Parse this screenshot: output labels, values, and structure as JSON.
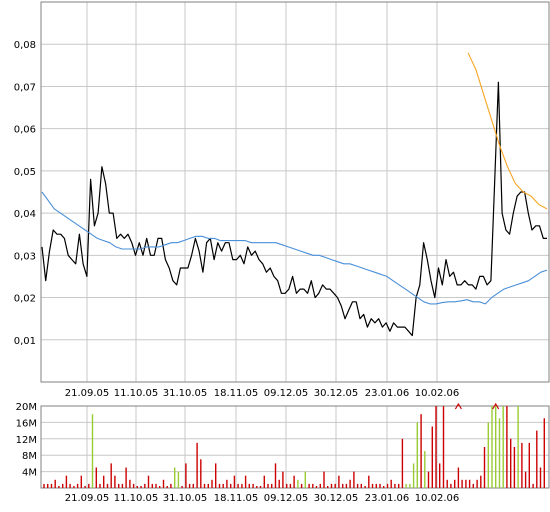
{
  "chart_data": [
    {
      "type": "line",
      "title": "",
      "xlabel": "",
      "ylabel": "",
      "grid": true,
      "ylim": [
        0.0,
        0.09
      ],
      "yticks": [
        "0,01",
        "0,02",
        "0,03",
        "0,04",
        "0,05",
        "0,06",
        "0,07",
        "0,08"
      ],
      "ytick_values": [
        0.01,
        0.02,
        0.03,
        0.04,
        0.05,
        0.06,
        0.07,
        0.08
      ],
      "xticks": [
        "21.09.05",
        "11.10.05",
        "31.10.05",
        "18.11.05",
        "09.12.05",
        "30.12.05",
        "23.01.06",
        "10.02.06"
      ],
      "x_range": [
        "2005-09-05",
        "2006-02-24"
      ],
      "series": [
        {
          "color": "#000000",
          "values": [
            0.032,
            0.024,
            0.031,
            0.036,
            0.035,
            0.035,
            0.034,
            0.03,
            0.029,
            0.028,
            0.035,
            0.028,
            0.025,
            0.048,
            0.037,
            0.04,
            0.051,
            0.047,
            0.04,
            0.04,
            0.034,
            0.035,
            0.034,
            0.035,
            0.033,
            0.03,
            0.033,
            0.03,
            0.034,
            0.03,
            0.03,
            0.034,
            0.034,
            0.029,
            0.027,
            0.024,
            0.023,
            0.027,
            0.027,
            0.027,
            0.03,
            0.034,
            0.031,
            0.026,
            0.033,
            0.034,
            0.029,
            0.033,
            0.031,
            0.033,
            0.033,
            0.029,
            0.029,
            0.03,
            0.028,
            0.032,
            0.03,
            0.031,
            0.029,
            0.028,
            0.026,
            0.027,
            0.025,
            0.024,
            0.021,
            0.021,
            0.022,
            0.025,
            0.021,
            0.022,
            0.022,
            0.021,
            0.024,
            0.02,
            0.021,
            0.023,
            0.022,
            0.022,
            0.021,
            0.02,
            0.018,
            0.015,
            0.017,
            0.019,
            0.019,
            0.015,
            0.016,
            0.013,
            0.015,
            0.014,
            0.015,
            0.013,
            0.014,
            0.012,
            0.014,
            0.013,
            0.013,
            0.013,
            0.012,
            0.011,
            0.02,
            0.023,
            0.033,
            0.029,
            0.024,
            0.02,
            0.027,
            0.023,
            0.029,
            0.025,
            0.026,
            0.023,
            0.023,
            0.024,
            0.023,
            0.023,
            0.022,
            0.025,
            0.025,
            0.023,
            0.024,
            0.047,
            0.071,
            0.04,
            0.036,
            0.035,
            0.04,
            0.044,
            0.045,
            0.045,
            0.04,
            0.036,
            0.037,
            0.037,
            0.034,
            0.034
          ]
        },
        {
          "color": "#4a8fd9",
          "values": [
            0.045,
            0.043,
            0.041,
            0.04,
            0.039,
            0.038,
            0.037,
            0.036,
            0.035,
            0.034,
            0.0335,
            0.033,
            0.032,
            0.0315,
            0.0315,
            0.0315,
            0.0315,
            0.032,
            0.032,
            0.032,
            0.0325,
            0.033,
            0.033,
            0.0335,
            0.034,
            0.0345,
            0.0345,
            0.034,
            0.034,
            0.0335,
            0.0335,
            0.0335,
            0.0335,
            0.0335,
            0.033,
            0.033,
            0.033,
            0.033,
            0.033,
            0.0325,
            0.032,
            0.0315,
            0.031,
            0.0305,
            0.03,
            0.03,
            0.0295,
            0.029,
            0.0285,
            0.028,
            0.028,
            0.0275,
            0.027,
            0.0265,
            0.026,
            0.0255,
            0.025,
            0.024,
            0.023,
            0.022,
            0.021,
            0.02,
            0.019,
            0.0185,
            0.0185,
            0.0188,
            0.019,
            0.019,
            0.0192,
            0.0195,
            0.019,
            0.019,
            0.0185,
            0.02,
            0.021,
            0.022,
            0.0225,
            0.023,
            0.0235,
            0.024,
            0.025,
            0.026,
            0.0265
          ]
        },
        {
          "color": "#f5a623",
          "values": [
            0.078,
            0.074,
            0.068,
            0.062,
            0.056,
            0.051,
            0.047,
            0.045,
            0.044,
            0.042,
            0.041
          ]
        }
      ]
    },
    {
      "type": "bar",
      "title": "",
      "xlabel": "",
      "ylabel": "",
      "grid": true,
      "ylim": [
        0,
        20
      ],
      "unit": "M",
      "yticks": [
        "4M",
        "8M",
        "12M",
        "16M",
        "20M"
      ],
      "ytick_values": [
        4,
        8,
        12,
        16,
        20
      ],
      "xticks": [
        "21.09.05",
        "11.10.05",
        "31.10.05",
        "18.11.05",
        "09.12.05",
        "30.12.05",
        "23.01.06",
        "10.02.06"
      ],
      "colors": {
        "up": "#99cc33",
        "down": "#cc0000"
      },
      "values": [
        1,
        1,
        1,
        2,
        0.5,
        1,
        3,
        1,
        0.5,
        1,
        3,
        0.5,
        1,
        18,
        5,
        1,
        3,
        1,
        6,
        3,
        1,
        1,
        5,
        2,
        1,
        0.5,
        0.5,
        1,
        3,
        1,
        1,
        0.5,
        2,
        0.5,
        1,
        5,
        4,
        0.5,
        6,
        1,
        1,
        11,
        7,
        1,
        1,
        2,
        6,
        1,
        1,
        2,
        1,
        3,
        1,
        1,
        3,
        1,
        1,
        0.5,
        0.5,
        3,
        1,
        1,
        6,
        2,
        4,
        1,
        1,
        3,
        2,
        1,
        4,
        1,
        1,
        0.5,
        1,
        4,
        0.5,
        1,
        1,
        3,
        1,
        1,
        2,
        4,
        1,
        1,
        0.5,
        3,
        1,
        1,
        1,
        0.5,
        1,
        2,
        1,
        1,
        12,
        1,
        1,
        6,
        16,
        18,
        9,
        4,
        15,
        20,
        6,
        20,
        2,
        1,
        2,
        5,
        2,
        2,
        2,
        1,
        2,
        3,
        10,
        16,
        20,
        20,
        17,
        20,
        20,
        12,
        10,
        20,
        11,
        4,
        11,
        1,
        14,
        5,
        17
      ],
      "up": [
        0,
        0,
        0,
        0,
        0,
        0,
        0,
        0,
        0,
        0,
        0,
        0,
        0,
        1,
        0,
        0,
        0,
        0,
        0,
        0,
        0,
        0,
        0,
        0,
        0,
        0,
        0,
        0,
        0,
        0,
        0,
        0,
        0,
        0,
        0,
        1,
        1,
        0,
        0,
        0,
        0,
        0,
        0,
        0,
        0,
        0,
        0,
        0,
        0,
        0,
        0,
        0,
        0,
        0,
        0,
        0,
        0,
        0,
        0,
        0,
        0,
        0,
        0,
        0,
        0,
        0,
        0,
        0,
        1,
        0,
        1,
        0,
        0,
        0,
        0,
        0,
        0,
        0,
        0,
        0,
        0,
        0,
        0,
        0,
        0,
        0,
        0,
        0,
        0,
        0,
        0,
        0,
        0,
        0,
        0,
        0,
        0,
        1,
        1,
        1,
        1,
        0,
        1,
        0,
        0,
        0,
        0,
        0,
        0,
        0,
        0,
        0,
        0,
        0,
        0,
        0,
        0,
        0,
        0,
        1,
        1,
        1,
        1,
        1,
        0,
        0,
        0,
        1,
        0,
        0,
        0,
        0,
        0,
        0,
        0,
        0
      ],
      "overflow_markers": [
        111,
        121
      ]
    }
  ]
}
